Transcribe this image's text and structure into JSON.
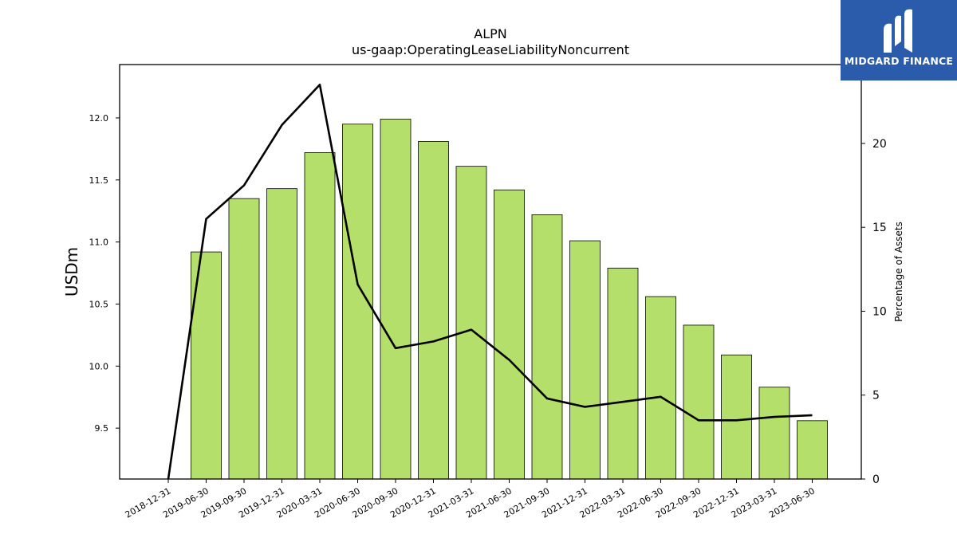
{
  "brand": {
    "name": "MIDGARD FINANCE",
    "bg_color": "#2a5cab"
  },
  "chart_data": {
    "type": "bar",
    "title": "ALPN",
    "subtitle": "us-gaap:OperatingLeaseLiabilityNoncurrent",
    "ylabel": "USDm",
    "y2label": "Percentage of Assets",
    "categories": [
      "2018-12-31",
      "2019-06-30",
      "2019-09-30",
      "2019-12-31",
      "2020-03-31",
      "2020-06-30",
      "2020-09-30",
      "2020-12-31",
      "2021-03-31",
      "2021-06-30",
      "2021-09-30",
      "2021-12-31",
      "2022-03-31",
      "2022-06-30",
      "2022-09-30",
      "2022-12-31",
      "2023-03-31",
      "2023-06-30"
    ],
    "series": [
      {
        "axis": "left",
        "kind": "bar",
        "color": "#b5df6b",
        "values": [
          null,
          10.92,
          11.35,
          11.43,
          11.72,
          11.95,
          11.99,
          11.81,
          11.61,
          11.42,
          11.22,
          11.01,
          10.79,
          10.56,
          10.33,
          10.09,
          9.83,
          9.56
        ]
      },
      {
        "axis": "right",
        "kind": "line",
        "color": "#000000",
        "values": [
          0.0,
          15.5,
          17.5,
          21.1,
          23.5,
          11.6,
          7.8,
          8.2,
          8.9,
          7.1,
          4.8,
          4.3,
          4.6,
          4.9,
          3.5,
          3.5,
          3.7,
          3.8
        ]
      }
    ],
    "ylim": [
      9.09,
      12.43
    ],
    "yticks": [
      9.5,
      10.0,
      10.5,
      11.0,
      11.5,
      12.0
    ],
    "y2lim": [
      0,
      24.7
    ],
    "y2ticks": [
      0,
      5,
      10,
      15,
      20
    ],
    "grid": false,
    "legend": "none"
  }
}
